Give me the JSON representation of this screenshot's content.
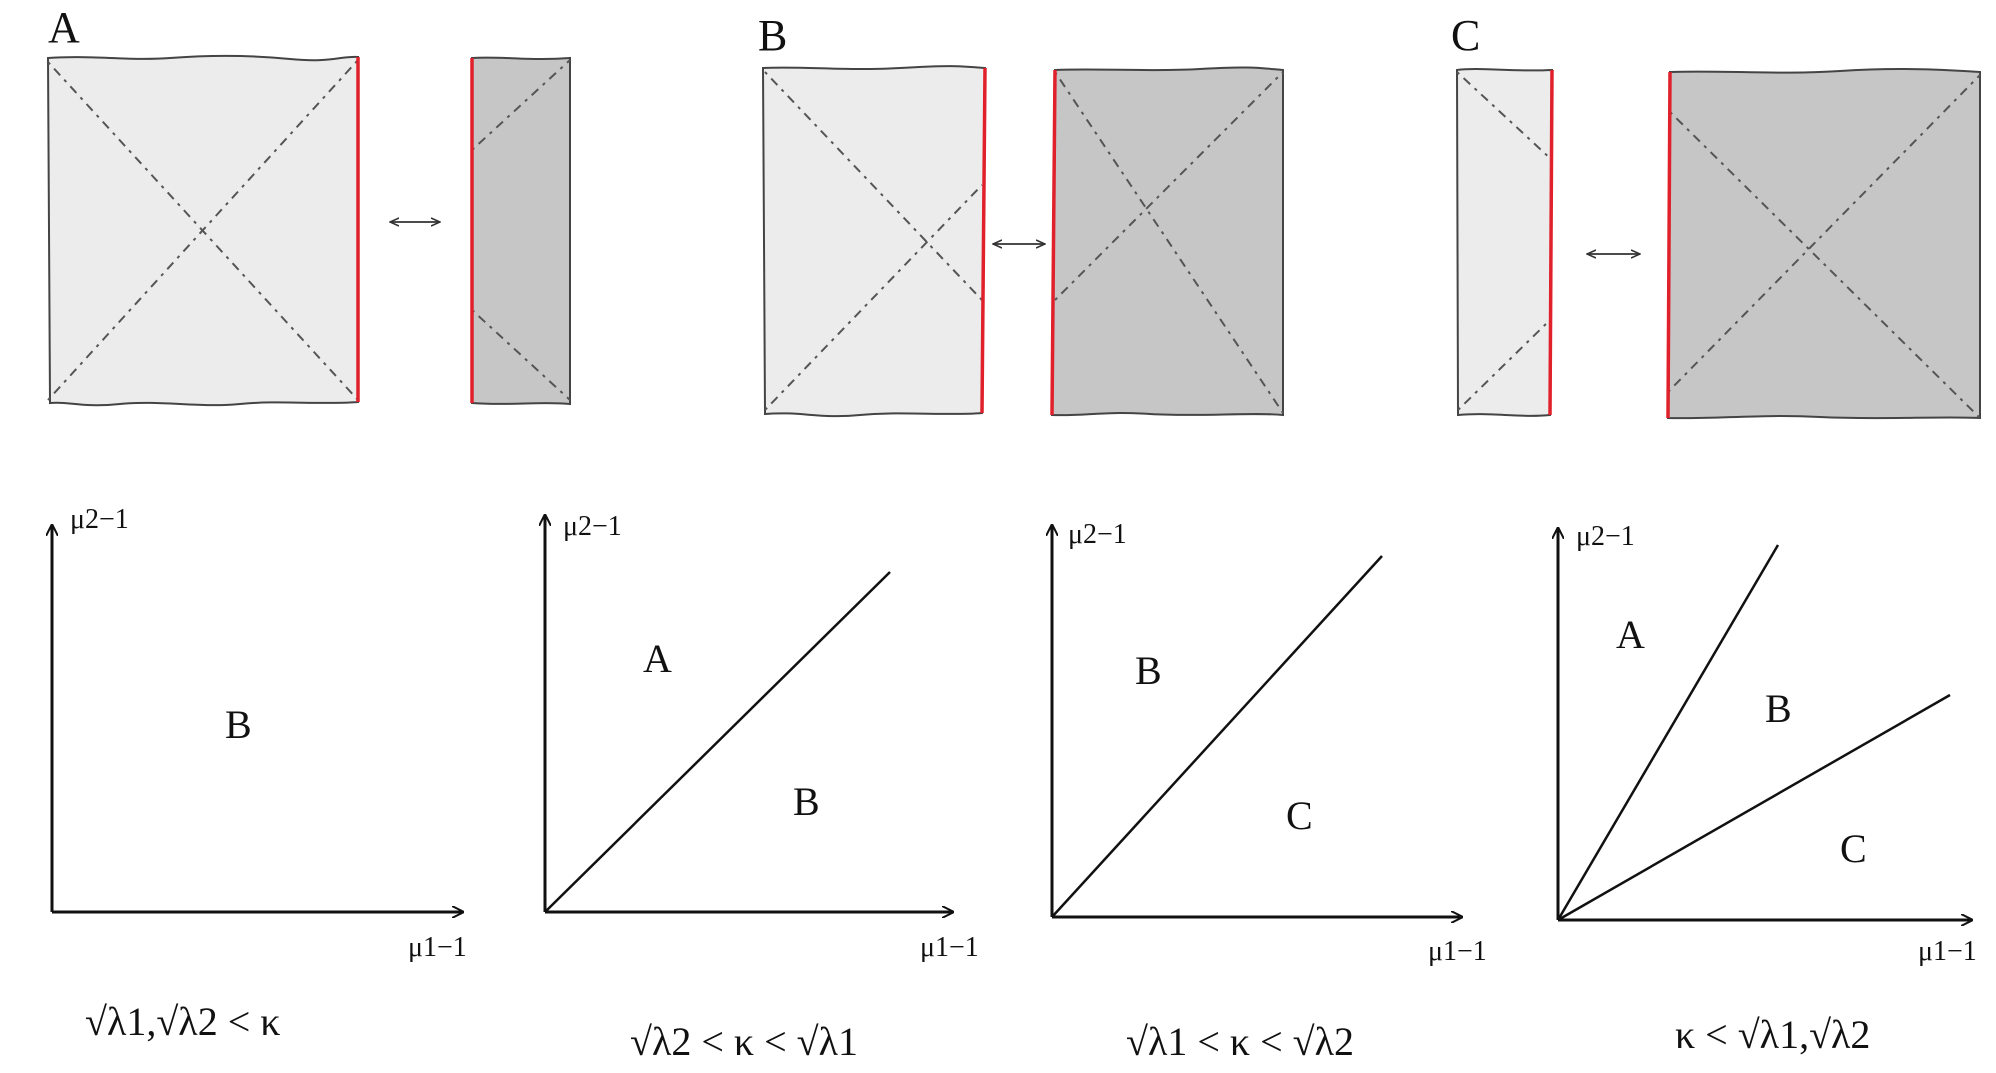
{
  "top": {
    "panels": [
      {
        "letter": "A",
        "light": "large",
        "dark": "small"
      },
      {
        "letter": "B",
        "light": "large",
        "dark": "large"
      },
      {
        "letter": "C",
        "light": "small",
        "dark": "large"
      }
    ],
    "arrow_glyph": "⟷",
    "colors": {
      "light_fill": "#ececec",
      "dark_fill": "#c6c6c6",
      "edge_red": "#e0202a",
      "outline": "#333333"
    }
  },
  "bottom": {
    "plots": [
      {
        "y_axis_label": "μ2−1",
        "x_axis_label": "μ1−1",
        "regions": [
          "B"
        ],
        "lines": [],
        "condition": "√λ1,√λ2 < κ"
      },
      {
        "y_axis_label": "μ2−1",
        "x_axis_label": "μ1−1",
        "regions": [
          "A",
          "B"
        ],
        "lines": [
          "diagonal"
        ],
        "condition": "√λ2 < κ < √λ1"
      },
      {
        "y_axis_label": "μ2−1",
        "x_axis_label": "μ1−1",
        "regions": [
          "B",
          "C"
        ],
        "lines": [
          "diagonal"
        ],
        "condition": "√λ1 < κ < √λ2"
      },
      {
        "y_axis_label": "μ2−1",
        "x_axis_label": "μ1−1",
        "regions": [
          "A",
          "B",
          "C"
        ],
        "lines": [
          "steep",
          "shallow"
        ],
        "condition": "κ < √λ1,√λ2"
      }
    ]
  }
}
